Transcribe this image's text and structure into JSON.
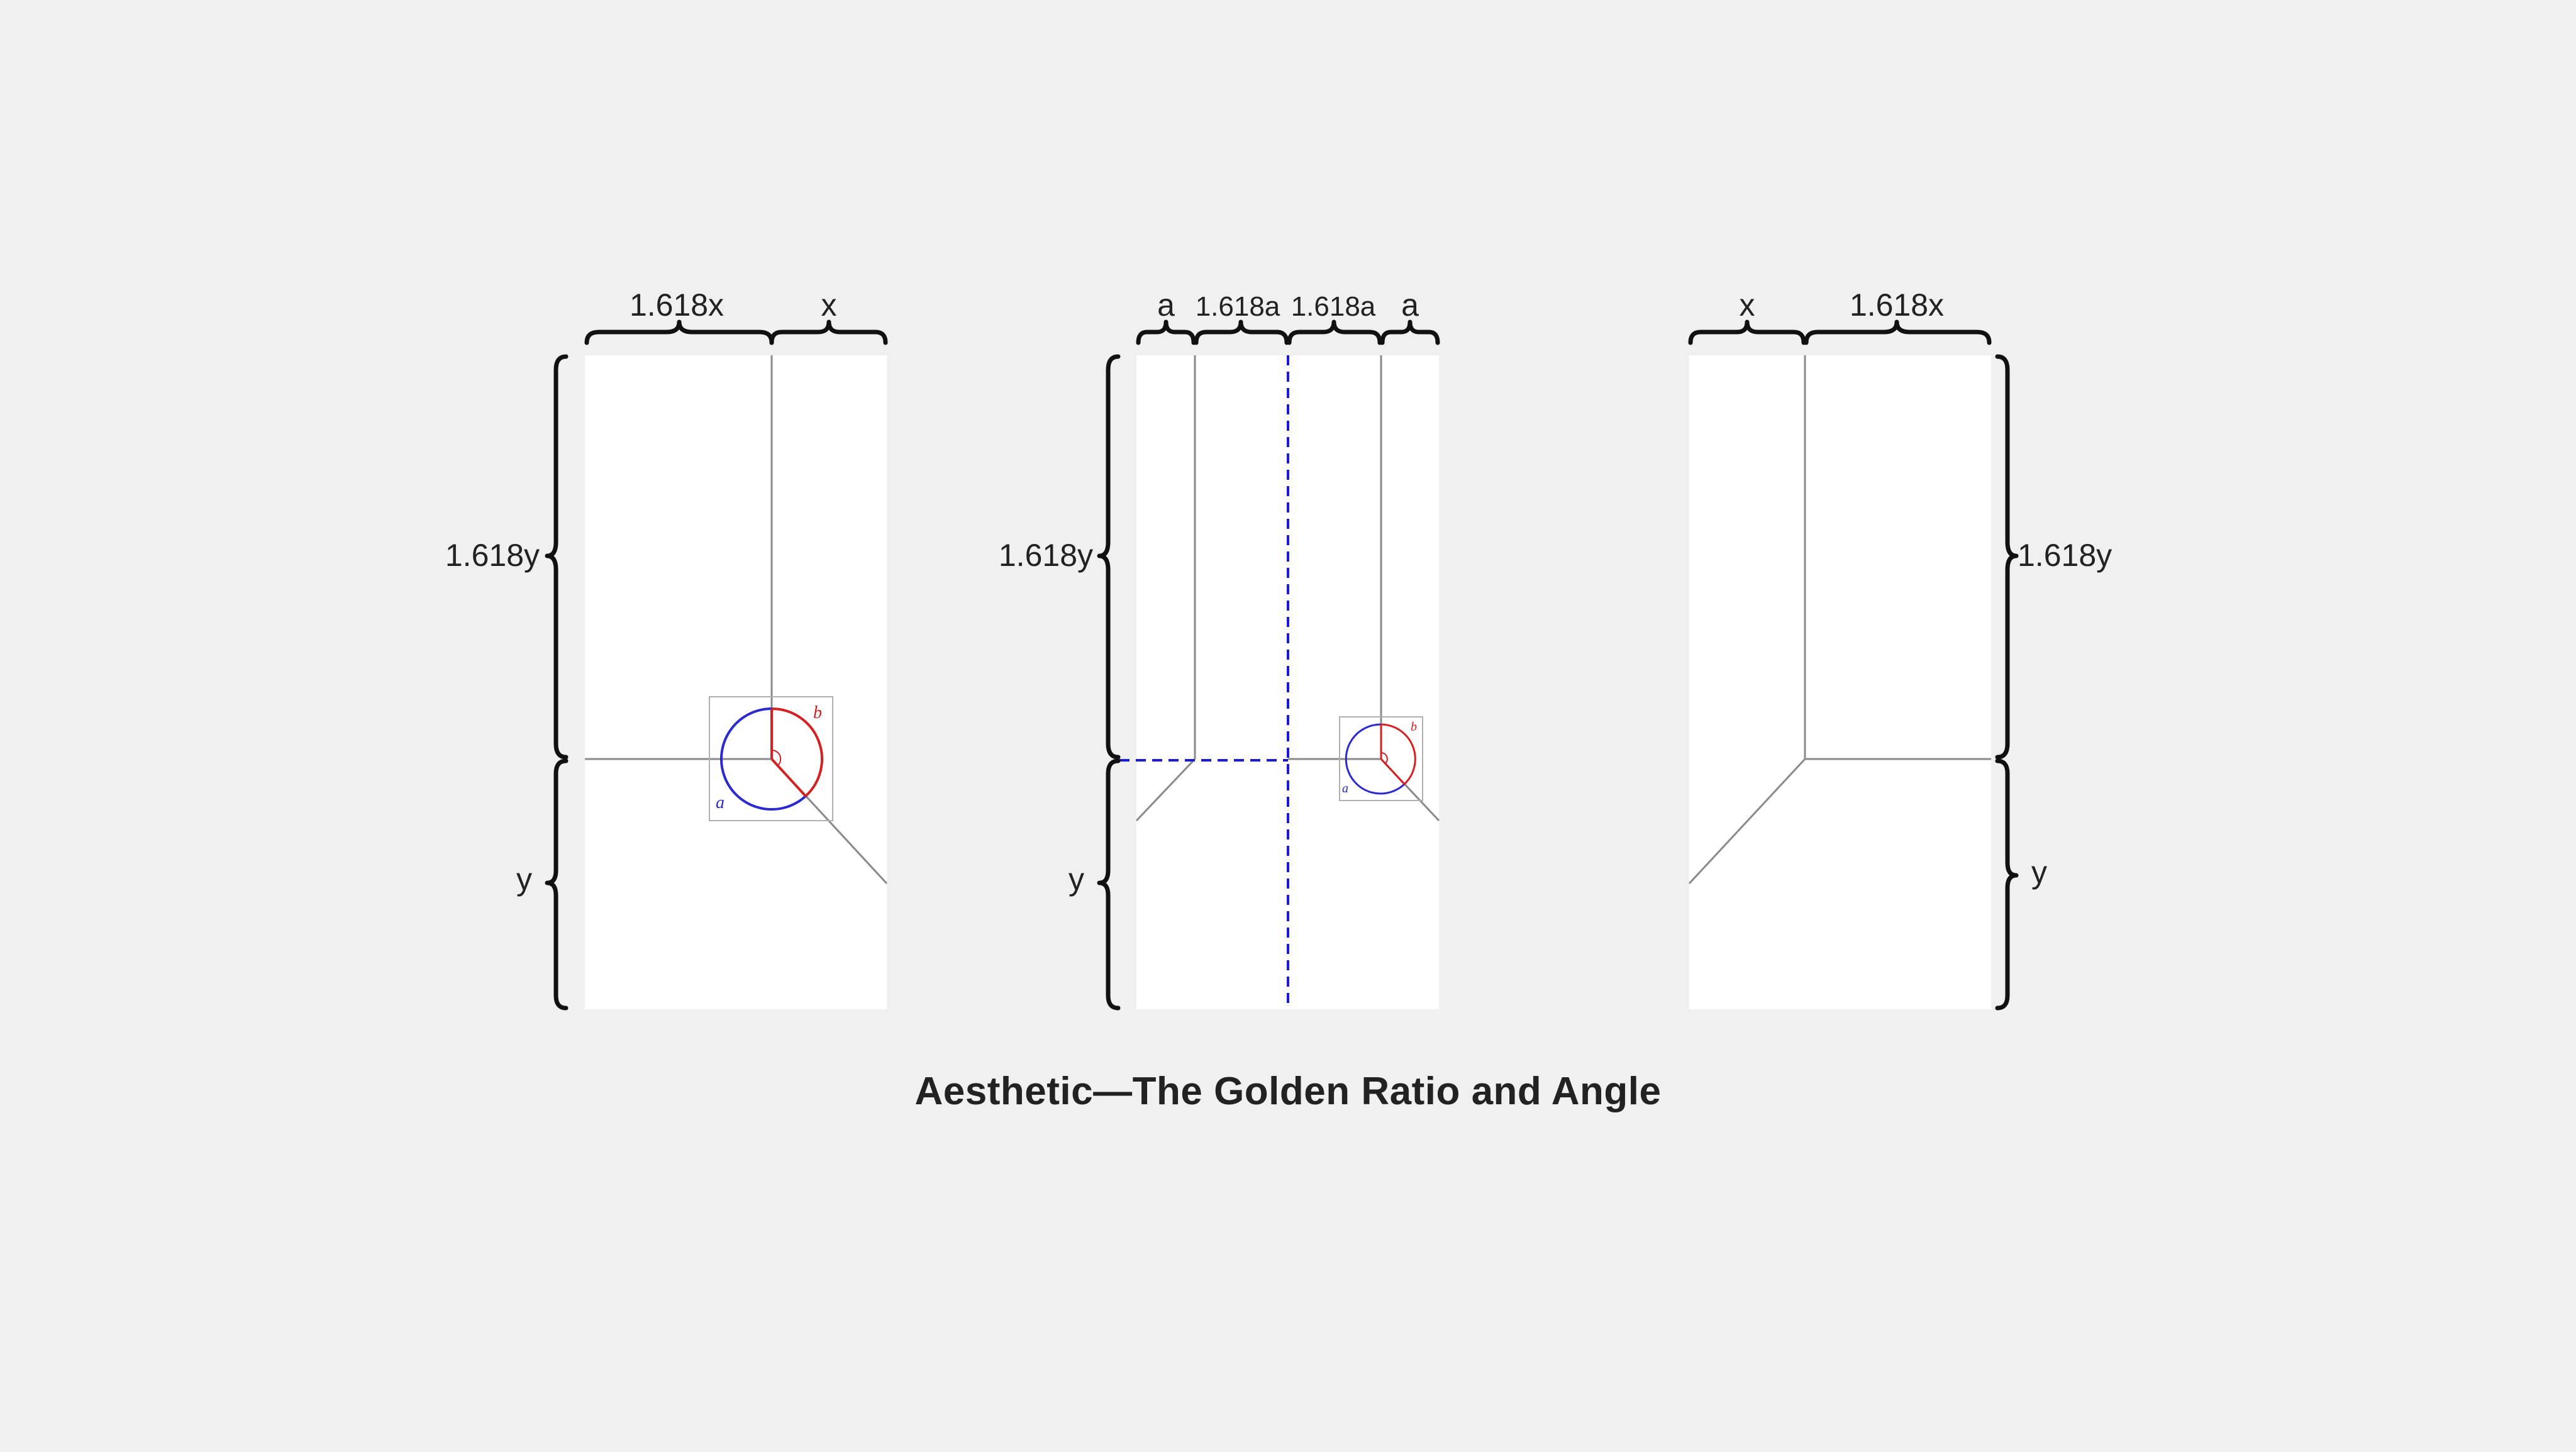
{
  "title": "Aesthetic—The Golden Ratio and Angle",
  "colors": {
    "background": "#f0f0f0",
    "panel": "#ffffff",
    "fold_line": "#8a8a8a",
    "angle_a": "#2a2ad0",
    "angle_b": "#d42020",
    "guide_dashed": "#1a1ad8",
    "brace": "#111111"
  },
  "panels": [
    {
      "id": "left",
      "top_labels": [
        "1.618x",
        "x"
      ],
      "side_labels": [
        "1.618y",
        "y"
      ],
      "angle_labels": [
        "a",
        "b"
      ]
    },
    {
      "id": "middle",
      "top_labels": [
        "a",
        "1.618a",
        "1.618a",
        "a"
      ],
      "side_labels": [
        "1.618y",
        "y"
      ],
      "angle_labels": [
        "a",
        "b"
      ]
    },
    {
      "id": "right",
      "top_labels": [
        "x",
        "1.618x"
      ],
      "side_labels": [
        "1.618y",
        "y"
      ]
    }
  ]
}
